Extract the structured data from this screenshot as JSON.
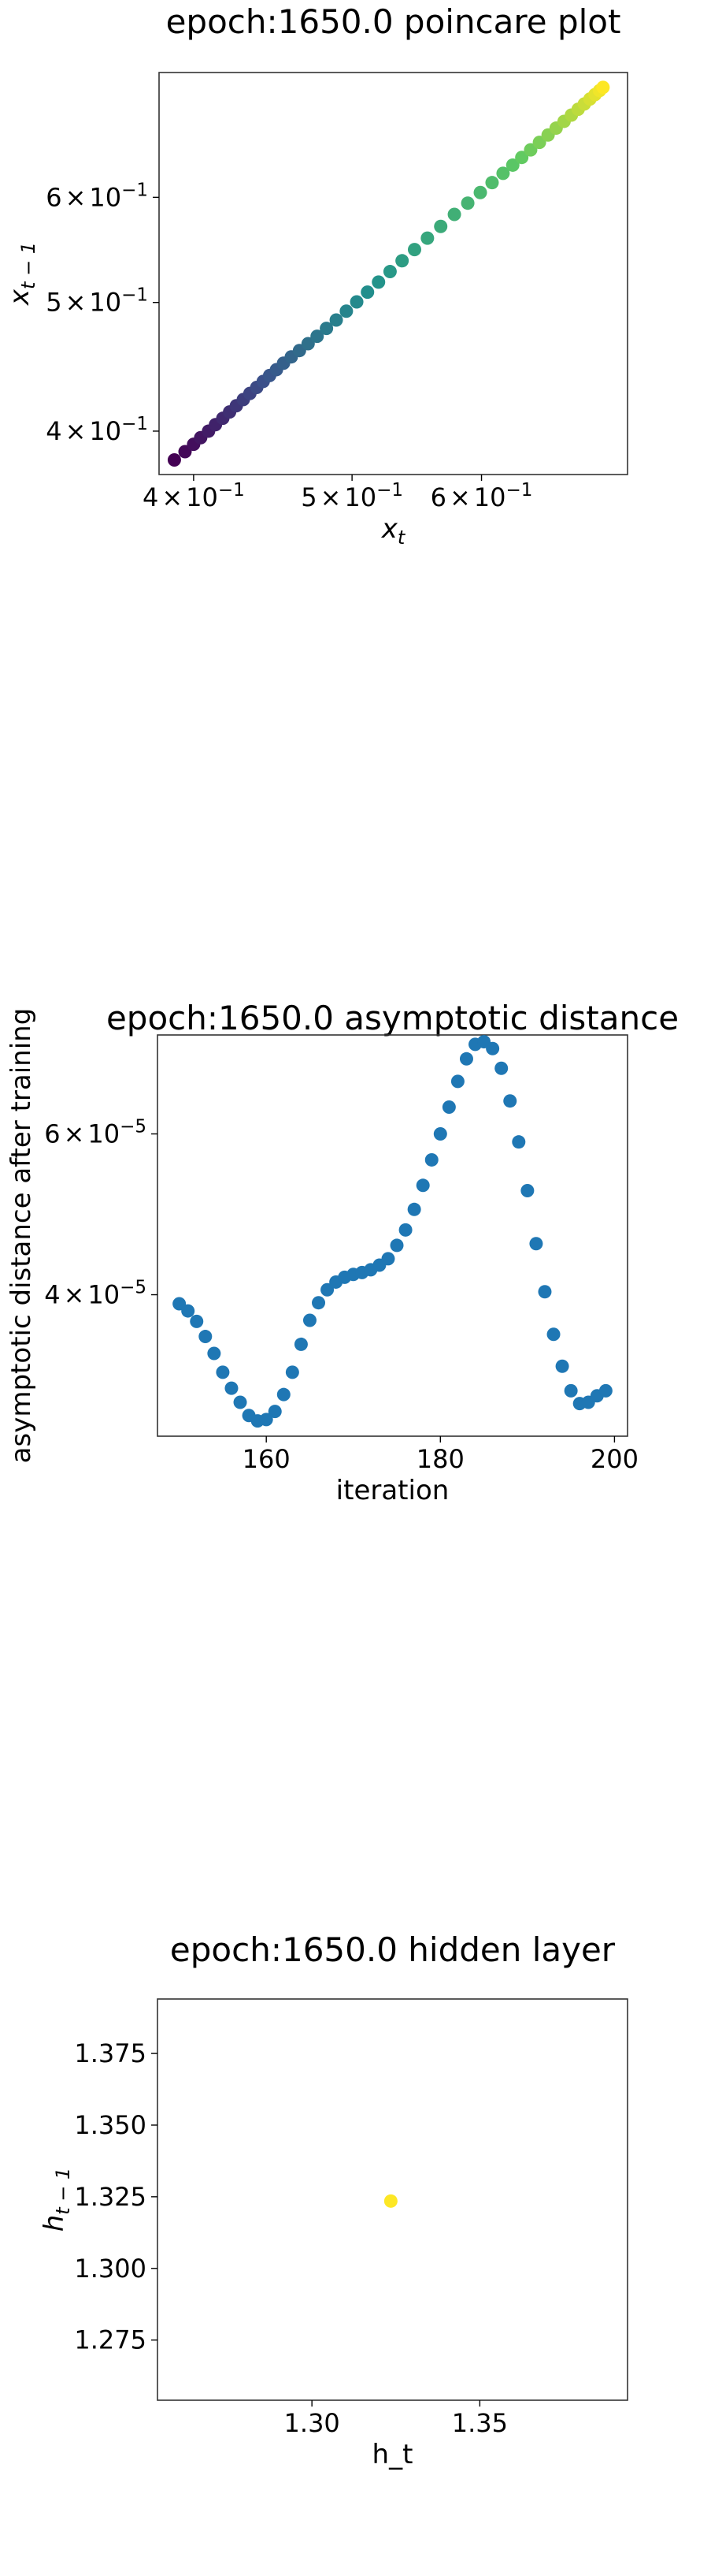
{
  "chart_data": [
    {
      "type": "scatter",
      "title": "epoch:1650.0 poincare plot",
      "xlabel_base": "x",
      "xlabel_sub": "t",
      "ylabel_base": "x",
      "ylabel_sub": "t − 1",
      "xscale": "log",
      "yscale": "log",
      "xlim": [
        0.381,
        0.737
      ],
      "ylim": [
        0.371,
        0.745
      ],
      "xticks": [
        {
          "value": 0.4,
          "mant": "4",
          "exp": "−1"
        },
        {
          "value": 0.5,
          "mant": "5",
          "exp": "−1"
        },
        {
          "value": 0.6,
          "mant": "6",
          "exp": "−1"
        }
      ],
      "yticks": [
        {
          "value": 0.4,
          "mant": "4",
          "exp": "−1"
        },
        {
          "value": 0.5,
          "mant": "5",
          "exp": "−1"
        },
        {
          "value": 0.6,
          "mant": "6",
          "exp": "−1"
        }
      ],
      "tick_times": "×",
      "tick_base": "10",
      "colormap": "viridis",
      "x": [
        0.3893,
        0.3952,
        0.4,
        0.404,
        0.4085,
        0.4125,
        0.4168,
        0.4208,
        0.4248,
        0.429,
        0.433,
        0.4372,
        0.4412,
        0.4452,
        0.4495,
        0.454,
        0.459,
        0.4643,
        0.47,
        0.476,
        0.4823,
        0.489,
        0.496,
        0.5033,
        0.511,
        0.519,
        0.5275,
        0.5365,
        0.546,
        0.556,
        0.5665,
        0.5775,
        0.5885,
        0.599,
        0.609,
        0.6185,
        0.627,
        0.635,
        0.643,
        0.651,
        0.659,
        0.6665,
        0.674,
        0.681,
        0.6875,
        0.6935,
        0.699,
        0.704,
        0.7085,
        0.712
      ],
      "y": [
        0.3805,
        0.386,
        0.391,
        0.3955,
        0.4,
        0.4045,
        0.409,
        0.4135,
        0.418,
        0.4225,
        0.427,
        0.4315,
        0.436,
        0.4405,
        0.445,
        0.45,
        0.455,
        0.46,
        0.4655,
        0.4715,
        0.478,
        0.485,
        0.4925,
        0.5005,
        0.509,
        0.518,
        0.5275,
        0.5375,
        0.548,
        0.559,
        0.5705,
        0.5825,
        0.594,
        0.605,
        0.6155,
        0.6255,
        0.6345,
        0.643,
        0.6515,
        0.66,
        0.6685,
        0.6765,
        0.6845,
        0.692,
        0.699,
        0.7055,
        0.7115,
        0.717,
        0.722,
        0.726
      ]
    },
    {
      "type": "scatter",
      "title": "epoch:1650.0 asymptotic distance",
      "xlabel": "iteration",
      "ylabel": "asymptotic distance after training",
      "xscale": "linear",
      "yscale": "log",
      "xlim": [
        147.5,
        201.5
      ],
      "ylim": [
        2.8e-05,
        7.7e-05
      ],
      "xticks": [
        {
          "value": 160,
          "label": "160"
        },
        {
          "value": 180,
          "label": "180"
        },
        {
          "value": 200,
          "label": "200"
        }
      ],
      "yticks": [
        {
          "value": 4e-05,
          "mant": "4",
          "exp": "−5"
        },
        {
          "value": 6e-05,
          "mant": "6",
          "exp": "−5"
        }
      ],
      "tick_times": "×",
      "tick_base": "10",
      "color": "#1f77b4",
      "x": [
        150,
        151,
        152,
        153,
        154,
        155,
        156,
        157,
        158,
        159,
        160,
        161,
        162,
        163,
        164,
        165,
        166,
        167,
        168,
        169,
        170,
        171,
        172,
        173,
        174,
        175,
        176,
        177,
        178,
        179,
        180,
        181,
        182,
        183,
        184,
        185,
        186,
        187,
        188,
        189,
        190,
        191,
        192,
        193,
        194,
        195,
        196,
        197,
        198,
        199
      ],
      "y": [
        3.91e-05,
        3.84e-05,
        3.74e-05,
        3.6e-05,
        3.45e-05,
        3.29e-05,
        3.16e-05,
        3.05e-05,
        2.95e-05,
        2.91e-05,
        2.92e-05,
        2.98e-05,
        3.11e-05,
        3.29e-05,
        3.53e-05,
        3.75e-05,
        3.92e-05,
        4.05e-05,
        4.13e-05,
        4.18e-05,
        4.21e-05,
        4.23e-05,
        4.26e-05,
        4.31e-05,
        4.38e-05,
        4.53e-05,
        4.71e-05,
        4.96e-05,
        5.27e-05,
        5.62e-05,
        6e-05,
        6.42e-05,
        6.85e-05,
        7.25e-05,
        7.52e-05,
        7.57e-05,
        7.44e-05,
        7.08e-05,
        6.52e-05,
        5.88e-05,
        5.2e-05,
        4.55e-05,
        4.03e-05,
        3.62e-05,
        3.34e-05,
        3.14e-05,
        3.04e-05,
        3.05e-05,
        3.1e-05,
        3.14e-05
      ]
    },
    {
      "type": "scatter",
      "title": "epoch:1650.0 hidden layer",
      "xlabel": "h_t",
      "ylabel_base": "h",
      "ylabel_sub": "t − 1",
      "xscale": "linear",
      "yscale": "linear",
      "xlim": [
        1.254,
        1.394
      ],
      "ylim": [
        1.254,
        1.394
      ],
      "xticks": [
        {
          "value": 1.3,
          "label": "1.30"
        },
        {
          "value": 1.35,
          "label": "1.35"
        }
      ],
      "yticks": [
        {
          "value": 1.275,
          "label": "1.275"
        },
        {
          "value": 1.3,
          "label": "1.300"
        },
        {
          "value": 1.325,
          "label": "1.325"
        },
        {
          "value": 1.35,
          "label": "1.350"
        },
        {
          "value": 1.375,
          "label": "1.375"
        }
      ],
      "color": "#fde725",
      "x": [
        1.3235
      ],
      "y": [
        1.3235
      ]
    }
  ]
}
